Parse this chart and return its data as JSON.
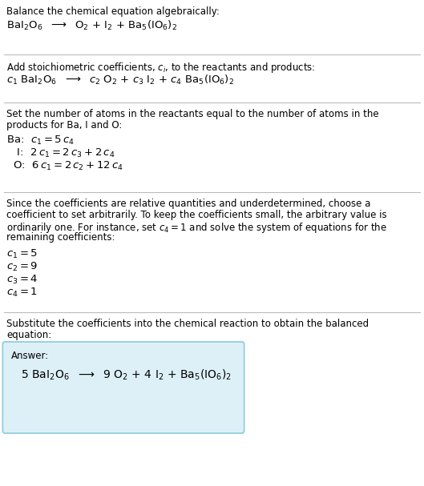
{
  "background_color": "#ffffff",
  "font_color": "#000000",
  "section_line_color": "#bbbbbb",
  "answer_box_facecolor": "#ddf0f8",
  "answer_box_edgecolor": "#88ccdd",
  "fig_width": 5.29,
  "fig_height": 6.07,
  "dpi": 100,
  "s1_line1": "Balance the chemical equation algebraically:",
  "s1_line2": "BaI$_2$O$_6$  $\\longrightarrow$  O$_2$ + I$_2$ + Ba$_5$(IO$_6$)$_2$",
  "s2_line1": "Add stoichiometric coefficients, $c_i$, to the reactants and products:",
  "s2_line2": "$c_1$ BaI$_2$O$_6$  $\\longrightarrow$  $c_2$ O$_2$ + $c_3$ I$_2$ + $c_4$ Ba$_5$(IO$_6$)$_2$",
  "s3_line1": "Set the number of atoms in the reactants equal to the number of atoms in the",
  "s3_line2": "products for Ba, I and O:",
  "s3_ba": "Ba:  $c_1 = 5\\,c_4$",
  "s3_i": "   I:  $2\\,c_1 = 2\\,c_3 + 2\\,c_4$",
  "s3_o": "  O:  $6\\,c_1 = 2\\,c_2 + 12\\,c_4$",
  "s4_line1": "Since the coefficients are relative quantities and underdetermined, choose a",
  "s4_line2": "coefficient to set arbitrarily. To keep the coefficients small, the arbitrary value is",
  "s4_line3": "ordinarily one. For instance, set $c_4 = 1$ and solve the system of equations for the",
  "s4_line4": "remaining coefficients:",
  "s4_c1": "$c_1 = 5$",
  "s4_c2": "$c_2 = 9$",
  "s4_c3": "$c_3 = 4$",
  "s4_c4": "$c_4 = 1$",
  "s5_line1": "Substitute the coefficients into the chemical reaction to obtain the balanced",
  "s5_line2": "equation:",
  "answer_label": "Answer:",
  "answer_eq": "5 BaI$_2$O$_6$  $\\longrightarrow$  9 O$_2$ + 4 I$_2$ + Ba$_5$(IO$_6$)$_2$"
}
